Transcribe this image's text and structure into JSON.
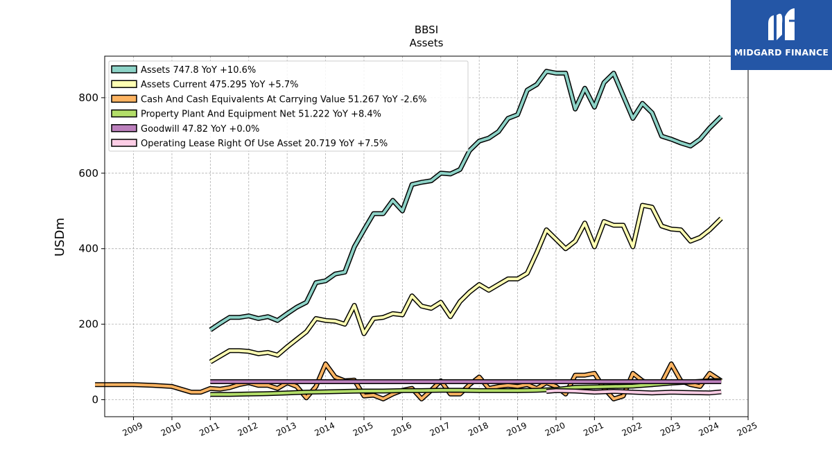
{
  "logo": {
    "text": "MIDGARD FINANCE",
    "background": "#2456a6"
  },
  "chart_data": {
    "type": "line",
    "title": "BBSI",
    "subtitle": "Assets",
    "xlabel": "",
    "ylabel": "USDm",
    "xlim": [
      2008.25,
      2025.0
    ],
    "ylim": [
      -45,
      910
    ],
    "xticks": [
      "2009",
      "2010",
      "2011",
      "2012",
      "2013",
      "2014",
      "2015",
      "2016",
      "2017",
      "2018",
      "2019",
      "2020",
      "2021",
      "2022",
      "2023",
      "2024",
      "2025"
    ],
    "yticks": [
      0,
      200,
      400,
      600,
      800
    ],
    "grid": true,
    "legend_position": "top-left",
    "series": [
      {
        "name": "Assets  747.8 YoY +10.6%",
        "color": "#8dd3c7",
        "x": [
          2011.0,
          2011.25,
          2011.5,
          2011.75,
          2012.0,
          2012.25,
          2012.5,
          2012.75,
          2013.0,
          2013.25,
          2013.5,
          2013.75,
          2014.0,
          2014.25,
          2014.5,
          2014.75,
          2015.0,
          2015.25,
          2015.5,
          2015.75,
          2016.0,
          2016.25,
          2016.5,
          2016.75,
          2017.0,
          2017.25,
          2017.5,
          2017.75,
          2018.0,
          2018.25,
          2018.5,
          2018.75,
          2019.0,
          2019.25,
          2019.5,
          2019.75,
          2020.0,
          2020.25,
          2020.5,
          2020.75,
          2021.0,
          2021.25,
          2021.5,
          2021.75,
          2022.0,
          2022.25,
          2022.5,
          2022.75,
          2023.0,
          2023.25,
          2023.5,
          2023.75,
          2024.0,
          2024.3
        ],
        "values": [
          185,
          202,
          218,
          218,
          222,
          215,
          220,
          210,
          228,
          245,
          258,
          310,
          315,
          333,
          338,
          405,
          450,
          493,
          493,
          528,
          500,
          570,
          576,
          580,
          600,
          598,
          610,
          660,
          685,
          693,
          710,
          745,
          755,
          820,
          835,
          870,
          865,
          865,
          770,
          825,
          775,
          840,
          865,
          805,
          745,
          785,
          760,
          698,
          690,
          680,
          672,
          690,
          720,
          750
        ]
      },
      {
        "name": "Assets Current  475.295 YoY +5.7%",
        "color": "#ffffb3",
        "x": [
          2011.0,
          2011.25,
          2011.5,
          2011.75,
          2012.0,
          2012.25,
          2012.5,
          2012.75,
          2013.0,
          2013.25,
          2013.5,
          2013.75,
          2014.0,
          2014.25,
          2014.5,
          2014.75,
          2015.0,
          2015.25,
          2015.5,
          2015.75,
          2016.0,
          2016.25,
          2016.5,
          2016.75,
          2017.0,
          2017.25,
          2017.5,
          2017.75,
          2018.0,
          2018.25,
          2018.5,
          2018.75,
          2019.0,
          2019.25,
          2019.5,
          2019.75,
          2020.0,
          2020.25,
          2020.5,
          2020.75,
          2021.0,
          2021.25,
          2021.5,
          2021.75,
          2022.0,
          2022.25,
          2022.5,
          2022.75,
          2023.0,
          2023.25,
          2023.5,
          2023.75,
          2024.0,
          2024.3
        ],
        "values": [
          100,
          115,
          130,
          130,
          128,
          122,
          125,
          118,
          140,
          160,
          180,
          215,
          210,
          208,
          200,
          250,
          175,
          215,
          218,
          228,
          225,
          275,
          248,
          242,
          258,
          220,
          260,
          285,
          305,
          290,
          305,
          320,
          320,
          335,
          390,
          450,
          425,
          400,
          420,
          468,
          405,
          472,
          462,
          462,
          405,
          515,
          510,
          460,
          452,
          450,
          420,
          430,
          450,
          480
        ]
      },
      {
        "name": "Cash And Cash Equivalents At Carrying Value  51.267 YoY -2.6%",
        "color": "#fdb462",
        "x": [
          2008.0,
          2008.5,
          2009.0,
          2009.5,
          2010.0,
          2010.5,
          2010.75,
          2011.0,
          2011.25,
          2011.5,
          2011.75,
          2012.0,
          2012.25,
          2012.5,
          2012.75,
          2013.0,
          2013.25,
          2013.5,
          2013.75,
          2014.0,
          2014.25,
          2014.5,
          2014.75,
          2015.0,
          2015.25,
          2015.5,
          2015.75,
          2016.0,
          2016.25,
          2016.5,
          2016.75,
          2017.0,
          2017.25,
          2017.5,
          2017.75,
          2018.0,
          2018.25,
          2018.5,
          2018.75,
          2019.0,
          2019.25,
          2019.5,
          2019.75,
          2020.0,
          2020.25,
          2020.5,
          2020.75,
          2021.0,
          2021.25,
          2021.5,
          2021.75,
          2022.0,
          2022.25,
          2022.5,
          2022.75,
          2023.0,
          2023.25,
          2023.5,
          2023.75,
          2024.0,
          2024.3
        ],
        "values": [
          40,
          40,
          40,
          38,
          35,
          20,
          20,
          30,
          28,
          32,
          40,
          45,
          38,
          38,
          30,
          45,
          35,
          5,
          35,
          95,
          60,
          50,
          52,
          10,
          12,
          2,
          15,
          25,
          30,
          2,
          25,
          50,
          15,
          15,
          40,
          60,
          30,
          35,
          38,
          35,
          40,
          30,
          45,
          35,
          15,
          65,
          65,
          70,
          30,
          2,
          10,
          70,
          50,
          40,
          45,
          95,
          50,
          40,
          35,
          70,
          50
        ]
      },
      {
        "name": "Property Plant And Equipment Net  51.222 YoY +8.4%",
        "color": "#b3de69",
        "x": [
          2011.0,
          2011.5,
          2012.0,
          2012.5,
          2013.0,
          2013.5,
          2014.0,
          2014.5,
          2015.0,
          2015.5,
          2016.0,
          2016.5,
          2017.0,
          2017.5,
          2018.0,
          2018.5,
          2019.0,
          2019.5,
          2020.0,
          2020.5,
          2021.0,
          2021.5,
          2022.0,
          2022.5,
          2023.0,
          2023.5,
          2024.0,
          2024.3
        ],
        "values": [
          14,
          14,
          15,
          16,
          18,
          20,
          21,
          22,
          23,
          23,
          24,
          24,
          25,
          25,
          24,
          24,
          24,
          25,
          27,
          33,
          34,
          35,
          36,
          40,
          44,
          47,
          50,
          51
        ]
      },
      {
        "name": "Goodwill  47.82 YoY +0.0%",
        "color": "#bc80bd",
        "x": [
          2011.0,
          2024.3
        ],
        "values": [
          47.82,
          47.82
        ]
      },
      {
        "name": "Operating Lease Right Of Use Asset  20.719 YoY +7.5%",
        "color": "#fccde5",
        "x": [
          2019.75,
          2020.0,
          2020.5,
          2021.0,
          2021.5,
          2022.0,
          2022.5,
          2023.0,
          2023.5,
          2024.0,
          2024.3
        ],
        "values": [
          22,
          24,
          23,
          20,
          22,
          20,
          18,
          20,
          19,
          18,
          20.7
        ]
      }
    ]
  }
}
